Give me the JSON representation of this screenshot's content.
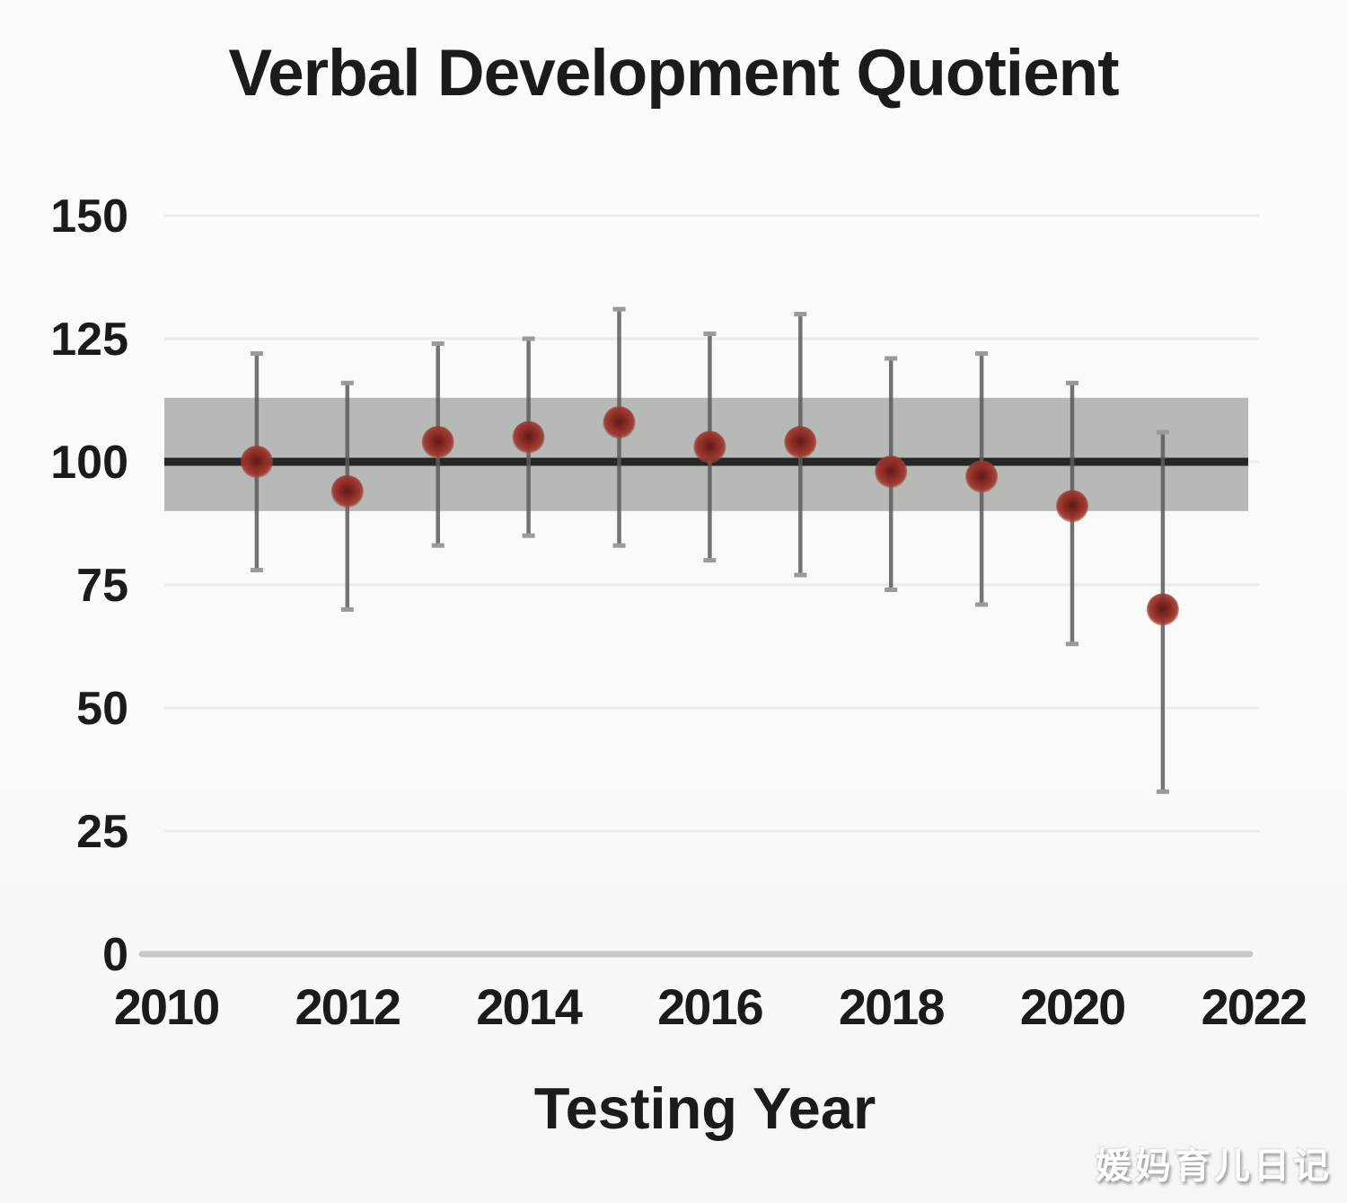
{
  "chart_data": {
    "type": "scatter",
    "title": "Verbal Development Quotient",
    "xlabel": "Testing Year",
    "ylabel": "",
    "xlim": [
      2010,
      2022
    ],
    "ylim": [
      0,
      150
    ],
    "x_ticks": [
      2010,
      2012,
      2014,
      2016,
      2018,
      2020,
      2022
    ],
    "y_ticks": [
      0,
      25,
      50,
      75,
      100,
      125,
      150
    ],
    "grid": "faint horizontal gridlines at y ticks",
    "legend": "none",
    "reference_line_y": 100,
    "reference_band": {
      "low": 90,
      "high": 113
    },
    "series": [
      {
        "marker": "filled-circle-with-error-bars",
        "points": [
          {
            "x": 2011,
            "y": 100,
            "ci_low": 78,
            "ci_high": 122
          },
          {
            "x": 2012,
            "y": 94,
            "ci_low": 70,
            "ci_high": 116
          },
          {
            "x": 2013,
            "y": 104,
            "ci_low": 83,
            "ci_high": 124
          },
          {
            "x": 2014,
            "y": 105,
            "ci_low": 85,
            "ci_high": 125
          },
          {
            "x": 2015,
            "y": 108,
            "ci_low": 83,
            "ci_high": 131
          },
          {
            "x": 2016,
            "y": 103,
            "ci_low": 80,
            "ci_high": 126
          },
          {
            "x": 2017,
            "y": 104,
            "ci_low": 77,
            "ci_high": 130
          },
          {
            "x": 2018,
            "y": 98,
            "ci_low": 74,
            "ci_high": 121
          },
          {
            "x": 2019,
            "y": 97,
            "ci_low": 71,
            "ci_high": 122
          },
          {
            "x": 2020,
            "y": 91,
            "ci_low": 63,
            "ci_high": 116
          },
          {
            "x": 2021,
            "y": 70,
            "ci_low": 33,
            "ci_high": 106
          }
        ]
      }
    ],
    "colors": {
      "point_edge": "#9c372e",
      "point_center": "#5e1b18",
      "error_bar": "#5c5c5c",
      "error_cap": "#9a9a9a",
      "reference_line": "#262626",
      "reference_band": "#b6b9b6",
      "axis_line": "#c8c8c8",
      "gridline": "#ececeb",
      "text": "#1b1b1b",
      "background": "#fafaf9"
    }
  },
  "watermark": {
    "text": "媛妈育儿日记"
  }
}
